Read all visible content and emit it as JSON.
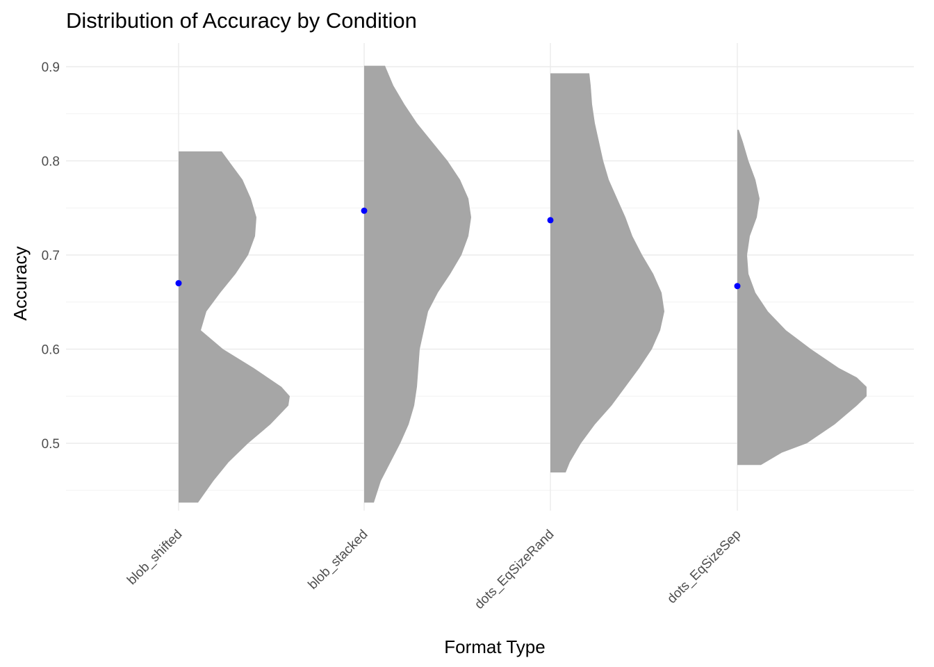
{
  "chart_data": {
    "type": "violin",
    "title": "Distribution of Accuracy by Condition",
    "xlabel": "Format Type",
    "ylabel": "Accuracy",
    "ylim": [
      0.42,
      0.925
    ],
    "yticks": [
      0.5,
      0.6,
      0.7,
      0.8,
      0.9
    ],
    "yticklabels": [
      "0.5",
      "0.6",
      "0.7",
      "0.8",
      "0.9"
    ],
    "grid": true,
    "legend": "none",
    "fill_color": "#a6a6a6",
    "point_color": "#0000ff",
    "categories": [
      "blob_shifted",
      "blob_stacked",
      "dots_EqSizeRand",
      "dots_EqSizeSep"
    ],
    "series": [
      {
        "category": "blob_shifted",
        "mean": 0.67,
        "density": [
          [
            0.437,
            0.14
          ],
          [
            0.46,
            0.25
          ],
          [
            0.48,
            0.36
          ],
          [
            0.5,
            0.5
          ],
          [
            0.52,
            0.66
          ],
          [
            0.54,
            0.79
          ],
          [
            0.55,
            0.8
          ],
          [
            0.56,
            0.74
          ],
          [
            0.58,
            0.54
          ],
          [
            0.6,
            0.32
          ],
          [
            0.62,
            0.16
          ],
          [
            0.64,
            0.2
          ],
          [
            0.66,
            0.3
          ],
          [
            0.68,
            0.41
          ],
          [
            0.7,
            0.5
          ],
          [
            0.72,
            0.55
          ],
          [
            0.74,
            0.56
          ],
          [
            0.76,
            0.52
          ],
          [
            0.78,
            0.46
          ],
          [
            0.8,
            0.36
          ],
          [
            0.81,
            0.31
          ]
        ]
      },
      {
        "category": "blob_stacked",
        "mean": 0.747,
        "density": [
          [
            0.437,
            0.07
          ],
          [
            0.46,
            0.12
          ],
          [
            0.48,
            0.19
          ],
          [
            0.5,
            0.26
          ],
          [
            0.52,
            0.32
          ],
          [
            0.54,
            0.36
          ],
          [
            0.56,
            0.38
          ],
          [
            0.58,
            0.39
          ],
          [
            0.6,
            0.4
          ],
          [
            0.62,
            0.43
          ],
          [
            0.64,
            0.46
          ],
          [
            0.66,
            0.53
          ],
          [
            0.68,
            0.62
          ],
          [
            0.7,
            0.7
          ],
          [
            0.72,
            0.75
          ],
          [
            0.74,
            0.77
          ],
          [
            0.76,
            0.75
          ],
          [
            0.78,
            0.69
          ],
          [
            0.8,
            0.6
          ],
          [
            0.82,
            0.49
          ],
          [
            0.84,
            0.38
          ],
          [
            0.86,
            0.29
          ],
          [
            0.88,
            0.21
          ],
          [
            0.901,
            0.15
          ]
        ]
      },
      {
        "category": "dots_EqSizeRand",
        "mean": 0.737,
        "density": [
          [
            0.469,
            0.11
          ],
          [
            0.48,
            0.14
          ],
          [
            0.5,
            0.22
          ],
          [
            0.52,
            0.32
          ],
          [
            0.54,
            0.44
          ],
          [
            0.56,
            0.54
          ],
          [
            0.58,
            0.64
          ],
          [
            0.6,
            0.73
          ],
          [
            0.62,
            0.79
          ],
          [
            0.64,
            0.82
          ],
          [
            0.66,
            0.8
          ],
          [
            0.68,
            0.74
          ],
          [
            0.7,
            0.66
          ],
          [
            0.72,
            0.59
          ],
          [
            0.74,
            0.54
          ],
          [
            0.76,
            0.48
          ],
          [
            0.78,
            0.42
          ],
          [
            0.8,
            0.38
          ],
          [
            0.82,
            0.35
          ],
          [
            0.84,
            0.32
          ],
          [
            0.86,
            0.3
          ],
          [
            0.88,
            0.29
          ],
          [
            0.893,
            0.28
          ]
        ]
      },
      {
        "category": "dots_EqSizeSep",
        "mean": 0.667,
        "density": [
          [
            0.477,
            0.17
          ],
          [
            0.49,
            0.32
          ],
          [
            0.5,
            0.5
          ],
          [
            0.52,
            0.7
          ],
          [
            0.54,
            0.86
          ],
          [
            0.55,
            0.93
          ],
          [
            0.56,
            0.93
          ],
          [
            0.57,
            0.86
          ],
          [
            0.58,
            0.73
          ],
          [
            0.6,
            0.53
          ],
          [
            0.62,
            0.35
          ],
          [
            0.64,
            0.22
          ],
          [
            0.66,
            0.13
          ],
          [
            0.68,
            0.08
          ],
          [
            0.7,
            0.07
          ],
          [
            0.72,
            0.09
          ],
          [
            0.74,
            0.14
          ],
          [
            0.76,
            0.16
          ],
          [
            0.78,
            0.13
          ],
          [
            0.8,
            0.08
          ],
          [
            0.82,
            0.04
          ],
          [
            0.833,
            0.01
          ]
        ]
      }
    ]
  }
}
